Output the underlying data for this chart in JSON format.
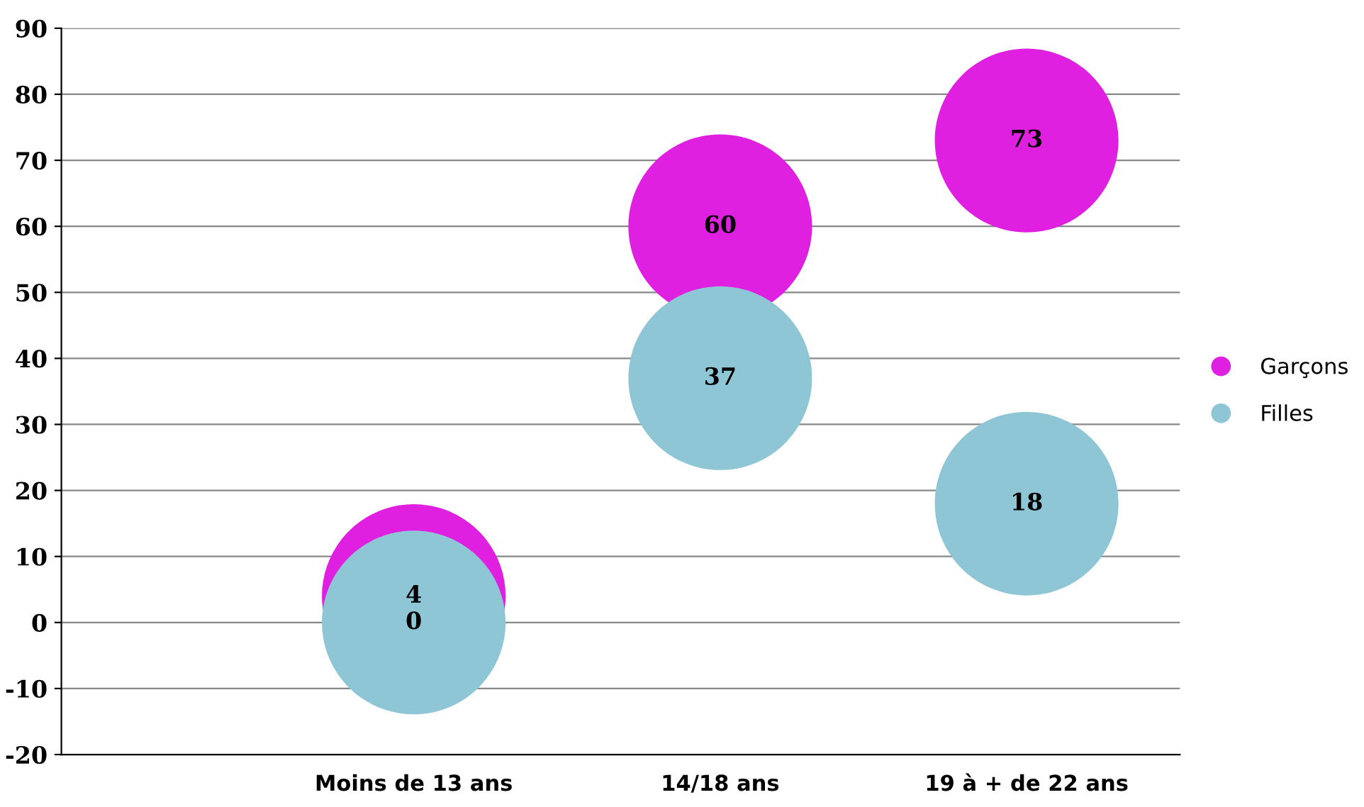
{
  "chart_data": {
    "type": "bubble",
    "categories": [
      "Moins de 13 ans",
      "14/18 ans",
      "19 à + de 22 ans"
    ],
    "series": [
      {
        "name": "Garçons",
        "color": "#e020e0",
        "values": [
          4,
          60,
          73
        ],
        "sizes": [
          1,
          1,
          1
        ]
      },
      {
        "name": "Filles",
        "color": "#8ec6d6",
        "values": [
          0,
          37,
          18
        ],
        "sizes": [
          1,
          1,
          1
        ]
      }
    ],
    "ylim": [
      -20,
      90
    ],
    "yticks": [
      -20,
      -10,
      0,
      10,
      20,
      30,
      40,
      50,
      60,
      70,
      80,
      90
    ],
    "grid": "y",
    "legend": "right",
    "data_labels": true
  }
}
